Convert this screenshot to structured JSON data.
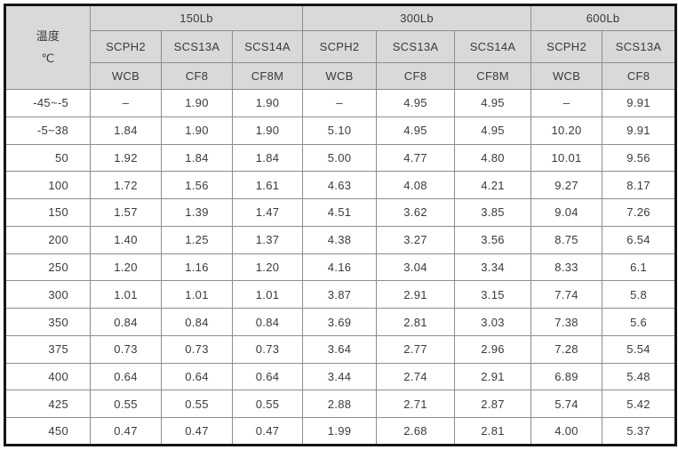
{
  "colors": {
    "header_background": "#d9d9d9",
    "grid_line": "#8d8d8d",
    "outer_border": "#151515",
    "text": "#3a3a3a",
    "body_background": "#ffffff"
  },
  "table": {
    "temp_header": {
      "line1": "温度",
      "line2": "℃"
    },
    "groups": [
      {
        "label": "150Lb",
        "materials": [
          "SCPH2",
          "SCS13A",
          "SCS14A"
        ],
        "grades": [
          "WCB",
          "CF8",
          "CF8M"
        ]
      },
      {
        "label": "300Lb",
        "materials": [
          "SCPH2",
          "SCS13A",
          "SCS14A"
        ],
        "grades": [
          "WCB",
          "CF8",
          "CF8M"
        ]
      },
      {
        "label": "600Lb",
        "materials": [
          "SCPH2",
          "SCS13A"
        ],
        "grades": [
          "WCB",
          "CF8"
        ]
      }
    ],
    "rows": [
      {
        "temp": "-45~-5",
        "values": [
          "–",
          "1.90",
          "1.90",
          "–",
          "4.95",
          "4.95",
          "–",
          "9.91"
        ]
      },
      {
        "temp": "-5~38",
        "values": [
          "1.84",
          "1.90",
          "1.90",
          "5.10",
          "4.95",
          "4.95",
          "10.20",
          "9.91"
        ]
      },
      {
        "temp": "50",
        "values": [
          "1.92",
          "1.84",
          "1.84",
          "5.00",
          "4.77",
          "4.80",
          "10.01",
          "9.56"
        ]
      },
      {
        "temp": "100",
        "values": [
          "1.72",
          "1.56",
          "1.61",
          "4.63",
          "4.08",
          "4.21",
          "9.27",
          "8.17"
        ]
      },
      {
        "temp": "150",
        "values": [
          "1.57",
          "1.39",
          "1.47",
          "4.51",
          "3.62",
          "3.85",
          "9.04",
          "7.26"
        ]
      },
      {
        "temp": "200",
        "values": [
          "1.40",
          "1.25",
          "1.37",
          "4.38",
          "3.27",
          "3.56",
          "8.75",
          "6.54"
        ]
      },
      {
        "temp": "250",
        "values": [
          "1.20",
          "1.16",
          "1.20",
          "4.16",
          "3.04",
          "3.34",
          "8.33",
          "6.1"
        ]
      },
      {
        "temp": "300",
        "values": [
          "1.01",
          "1.01",
          "1.01",
          "3.87",
          "2.91",
          "3.15",
          "7.74",
          "5.8"
        ]
      },
      {
        "temp": "350",
        "values": [
          "0.84",
          "0.84",
          "0.84",
          "3.69",
          "2.81",
          "3.03",
          "7.38",
          "5.6"
        ]
      },
      {
        "temp": "375",
        "values": [
          "0.73",
          "0.73",
          "0.73",
          "3.64",
          "2.77",
          "2.96",
          "7.28",
          "5.54"
        ]
      },
      {
        "temp": "400",
        "values": [
          "0.64",
          "0.64",
          "0.64",
          "3.44",
          "2.74",
          "2.91",
          "6.89",
          "5.48"
        ]
      },
      {
        "temp": "425",
        "values": [
          "0.55",
          "0.55",
          "0.55",
          "2.88",
          "2.71",
          "2.87",
          "5.74",
          "5.42"
        ]
      },
      {
        "temp": "450",
        "values": [
          "0.47",
          "0.47",
          "0.47",
          "1.99",
          "2.68",
          "2.81",
          "4.00",
          "5.37"
        ]
      }
    ]
  }
}
